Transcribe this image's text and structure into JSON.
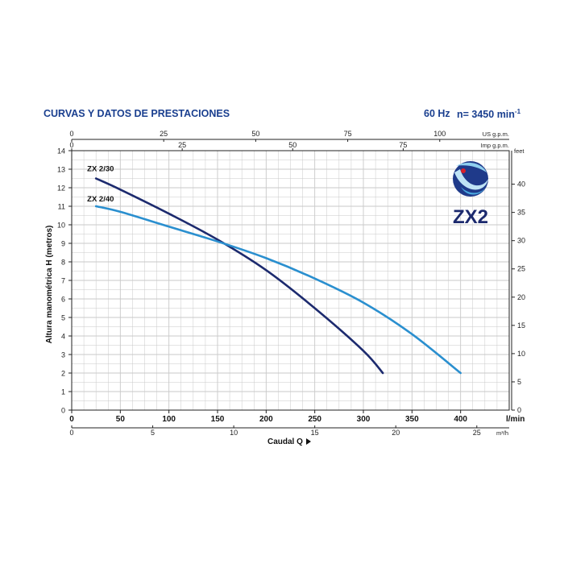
{
  "header": {
    "title": "CURVAS Y DATOS DE PRESTACIONES",
    "frequency": "60 Hz",
    "speed": "n= 3450 min",
    "speed_exp": "-1"
  },
  "logo": {
    "text": "ZX2",
    "icon": "swirl-globe-logo"
  },
  "colors": {
    "dark_series": "#1c2a6e",
    "light_series": "#2a8fcf",
    "grid": "#c9c9c9",
    "frame": "#222222"
  },
  "chart_data": {
    "type": "line",
    "ylabel": "Altura manométrica H (metros)",
    "xlabel": "Caudal Q",
    "x_unit": "l/min",
    "ylim": [
      0,
      14
    ],
    "xlim": [
      0,
      450
    ],
    "grid": true,
    "y_ticks": [
      0,
      1,
      2,
      3,
      4,
      5,
      6,
      7,
      8,
      9,
      10,
      11,
      12,
      13,
      14
    ],
    "x_ticks": [
      0,
      50,
      100,
      150,
      200,
      250,
      300,
      350,
      400
    ],
    "top_us_gpm": {
      "unit": "US g.p.m.",
      "ticks": [
        0,
        25,
        50,
        75,
        100
      ]
    },
    "top_imp_gpm": {
      "unit": "Imp g.p.m.",
      "ticks": [
        0,
        25,
        50,
        75
      ]
    },
    "bottom_m3h": {
      "unit": "m³/h",
      "ticks": [
        0,
        5,
        10,
        15,
        20,
        25
      ]
    },
    "right_feet": {
      "unit": "feet",
      "ticks": [
        0,
        5,
        10,
        15,
        20,
        25,
        30,
        35,
        40
      ]
    },
    "series": [
      {
        "name": "ZX 2/30",
        "color": "#1c2a6e",
        "x": [
          25,
          50,
          100,
          150,
          200,
          250,
          300,
          320
        ],
        "y": [
          12.5,
          11.9,
          10.6,
          9.2,
          7.55,
          5.5,
          3.2,
          2.0
        ]
      },
      {
        "name": "ZX 2/40",
        "color": "#2a8fcf",
        "x": [
          25,
          50,
          100,
          150,
          200,
          250,
          300,
          350,
          400
        ],
        "y": [
          11.0,
          10.7,
          9.9,
          9.1,
          8.2,
          7.1,
          5.8,
          4.1,
          2.0
        ]
      }
    ]
  }
}
